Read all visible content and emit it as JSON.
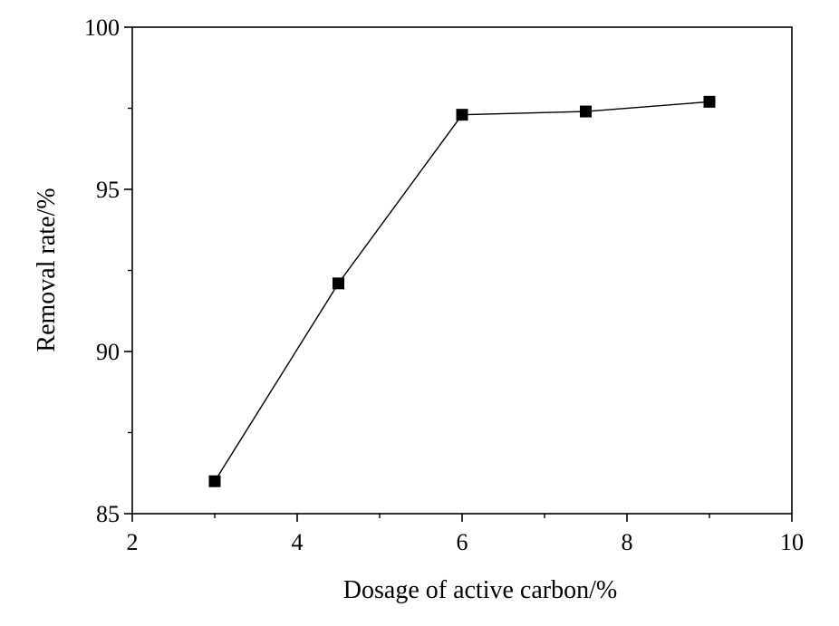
{
  "chart_data": {
    "type": "line",
    "title": "",
    "xlabel": "Dosage of active carbon/%",
    "ylabel": "Removal rate/%",
    "xlim": [
      2,
      10
    ],
    "ylim": [
      85,
      100
    ],
    "x_ticks": [
      2,
      4,
      6,
      8,
      10
    ],
    "y_ticks": [
      85,
      90,
      95,
      100
    ],
    "grid": false,
    "legend": "none",
    "marker": "square",
    "line_color": "#000000",
    "series": [
      {
        "x": [
          3,
          4.5,
          6,
          7.5,
          9
        ],
        "y": [
          86.0,
          92.1,
          97.3,
          97.4,
          97.7
        ]
      }
    ]
  }
}
